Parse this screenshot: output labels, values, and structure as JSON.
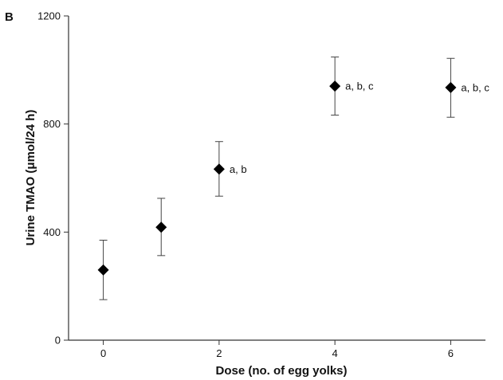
{
  "panel_label": "B",
  "chart_data": {
    "type": "scatter",
    "title": "",
    "xlabel": "Dose (no. of egg yolks)",
    "ylabel": "Urine TMAO (μmol/24 h)",
    "xlim": [
      -0.6,
      6.6
    ],
    "ylim": [
      0,
      1200
    ],
    "x_ticks": [
      0,
      2,
      4,
      6
    ],
    "y_ticks": [
      0,
      400,
      800,
      1200
    ],
    "grid": false,
    "series": [
      {
        "marker": "diamond",
        "color": "#000000",
        "points": [
          {
            "x": 0,
            "y": 260,
            "err_low": 150,
            "err_high": 370,
            "annotation": ""
          },
          {
            "x": 1,
            "y": 418,
            "err_low": 313,
            "err_high": 525,
            "annotation": ""
          },
          {
            "x": 2,
            "y": 633,
            "err_low": 533,
            "err_high": 735,
            "annotation": "a, b"
          },
          {
            "x": 4,
            "y": 940,
            "err_low": 833,
            "err_high": 1048,
            "annotation": "a, b, c"
          },
          {
            "x": 6,
            "y": 935,
            "err_low": 825,
            "err_high": 1043,
            "annotation": "a, b, c"
          }
        ]
      }
    ]
  }
}
